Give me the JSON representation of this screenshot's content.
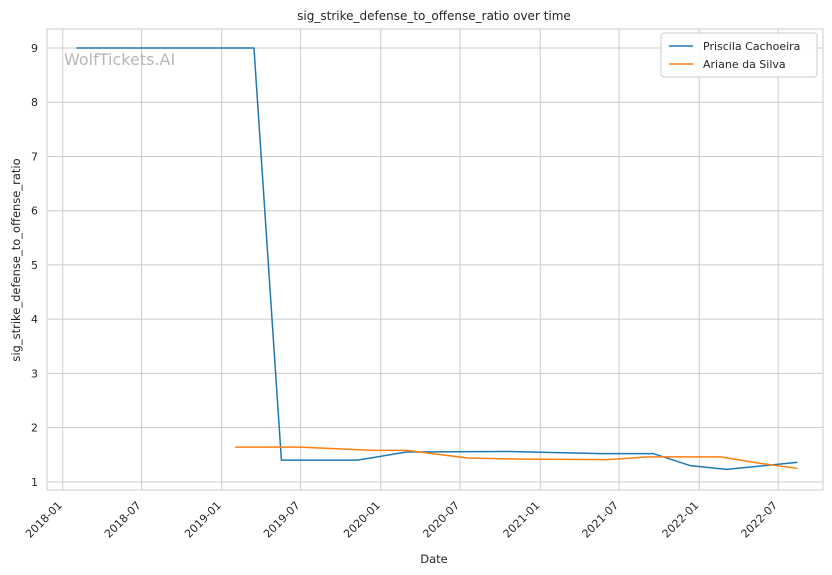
{
  "chart_data": {
    "type": "line",
    "title": "sig_strike_defense_to_offense_ratio over time",
    "xlabel": "Date",
    "ylabel": "sig_strike_defense_to_offense_ratio",
    "watermark": "WolfTickets.AI",
    "legend_position": "top-right",
    "grid": true,
    "ylim": [
      0.85,
      9.35
    ],
    "xlim": [
      "2017-11-26",
      "2022-10-12"
    ],
    "y_ticks": [
      "1",
      "2",
      "3",
      "4",
      "5",
      "6",
      "7",
      "8",
      "9"
    ],
    "x_ticks": [
      "2018-01",
      "2018-07",
      "2019-01",
      "2019-07",
      "2020-01",
      "2020-07",
      "2021-01",
      "2021-07",
      "2022-01",
      "2022-07"
    ],
    "series": [
      {
        "name": "Priscila Cachoeira",
        "color": "#1f77b4",
        "x": [
          "2018-02-03",
          "2019-03-16",
          "2019-05-18",
          "2019-11-09",
          "2020-02-29",
          "2020-10-17",
          "2021-05-22",
          "2021-09-18",
          "2021-12-11",
          "2022-03-05",
          "2022-08-13"
        ],
        "y": [
          9.0,
          9.0,
          1.4,
          1.4,
          1.55,
          1.56,
          1.52,
          1.52,
          1.3,
          1.23,
          1.36
        ]
      },
      {
        "name": "Ariane da Silva",
        "color": "#ff7f0e",
        "x": [
          "2019-02-02",
          "2019-06-29",
          "2019-12-14",
          "2020-02-29",
          "2020-07-18",
          "2020-11-21",
          "2021-06-05",
          "2021-09-04",
          "2022-02-19",
          "2022-05-21",
          "2022-08-13"
        ],
        "y": [
          1.64,
          1.64,
          1.58,
          1.58,
          1.44,
          1.42,
          1.41,
          1.46,
          1.46,
          1.34,
          1.25
        ]
      }
    ]
  }
}
